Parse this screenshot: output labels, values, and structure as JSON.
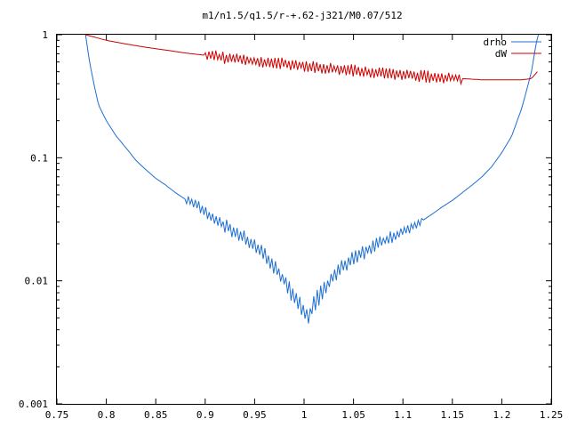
{
  "chart_data": {
    "type": "line",
    "title": "m1/n1.5/q1.5/r-+.62-j321/M0.07/512",
    "xlabel": "",
    "ylabel": "",
    "xlim": [
      0.75,
      1.25
    ],
    "ylim": [
      0.001,
      1
    ],
    "yscale": "log",
    "grid": false,
    "legend_position": "top-right",
    "x_ticks": [
      "0.75",
      "0.8",
      "0.85",
      "0.9",
      "0.95",
      "1",
      "1.05",
      "1.1",
      "1.15",
      "1.2",
      "1.25"
    ],
    "y_ticks": [
      "1",
      "0.1",
      "0.01",
      "0.001"
    ],
    "series": [
      {
        "name": "drho",
        "color": "#1f6fd0",
        "x": [
          0.779,
          0.783,
          0.788,
          0.792,
          0.8,
          0.81,
          0.82,
          0.83,
          0.84,
          0.85,
          0.86,
          0.87,
          0.88,
          0.89,
          0.9,
          0.91,
          0.92,
          0.93,
          0.94,
          0.95,
          0.96,
          0.97,
          0.98,
          0.99,
          1.0,
          1.005,
          1.01,
          1.02,
          1.03,
          1.04,
          1.05,
          1.06,
          1.07,
          1.08,
          1.09,
          1.1,
          1.11,
          1.12,
          1.13,
          1.14,
          1.15,
          1.16,
          1.17,
          1.18,
          1.19,
          1.2,
          1.21,
          1.22,
          1.225,
          1.23,
          1.233,
          1.236,
          1.237
        ],
        "y": [
          1.0,
          0.6,
          0.38,
          0.27,
          0.2,
          0.15,
          0.12,
          0.095,
          0.08,
          0.068,
          0.06,
          0.052,
          0.046,
          0.042,
          0.036,
          0.032,
          0.028,
          0.025,
          0.022,
          0.019,
          0.016,
          0.013,
          0.01,
          0.0075,
          0.0055,
          0.0052,
          0.0065,
          0.0085,
          0.011,
          0.013,
          0.015,
          0.017,
          0.019,
          0.021,
          0.023,
          0.025,
          0.028,
          0.031,
          0.035,
          0.04,
          0.045,
          0.052,
          0.06,
          0.07,
          0.085,
          0.11,
          0.15,
          0.25,
          0.35,
          0.5,
          0.7,
          0.95,
          1.0
        ]
      },
      {
        "name": "dW",
        "color": "#cc0000",
        "x": [
          0.779,
          0.8,
          0.82,
          0.84,
          0.86,
          0.88,
          0.9,
          0.92,
          0.94,
          0.96,
          0.98,
          1.0,
          1.02,
          1.04,
          1.06,
          1.08,
          1.1,
          1.12,
          1.14,
          1.16,
          1.18,
          1.2,
          1.22,
          1.23,
          1.236
        ],
        "y": [
          1.0,
          0.9,
          0.84,
          0.79,
          0.75,
          0.71,
          0.68,
          0.65,
          0.62,
          0.6,
          0.58,
          0.56,
          0.54,
          0.52,
          0.5,
          0.49,
          0.47,
          0.46,
          0.45,
          0.44,
          0.43,
          0.43,
          0.43,
          0.44,
          0.5
        ]
      }
    ]
  }
}
